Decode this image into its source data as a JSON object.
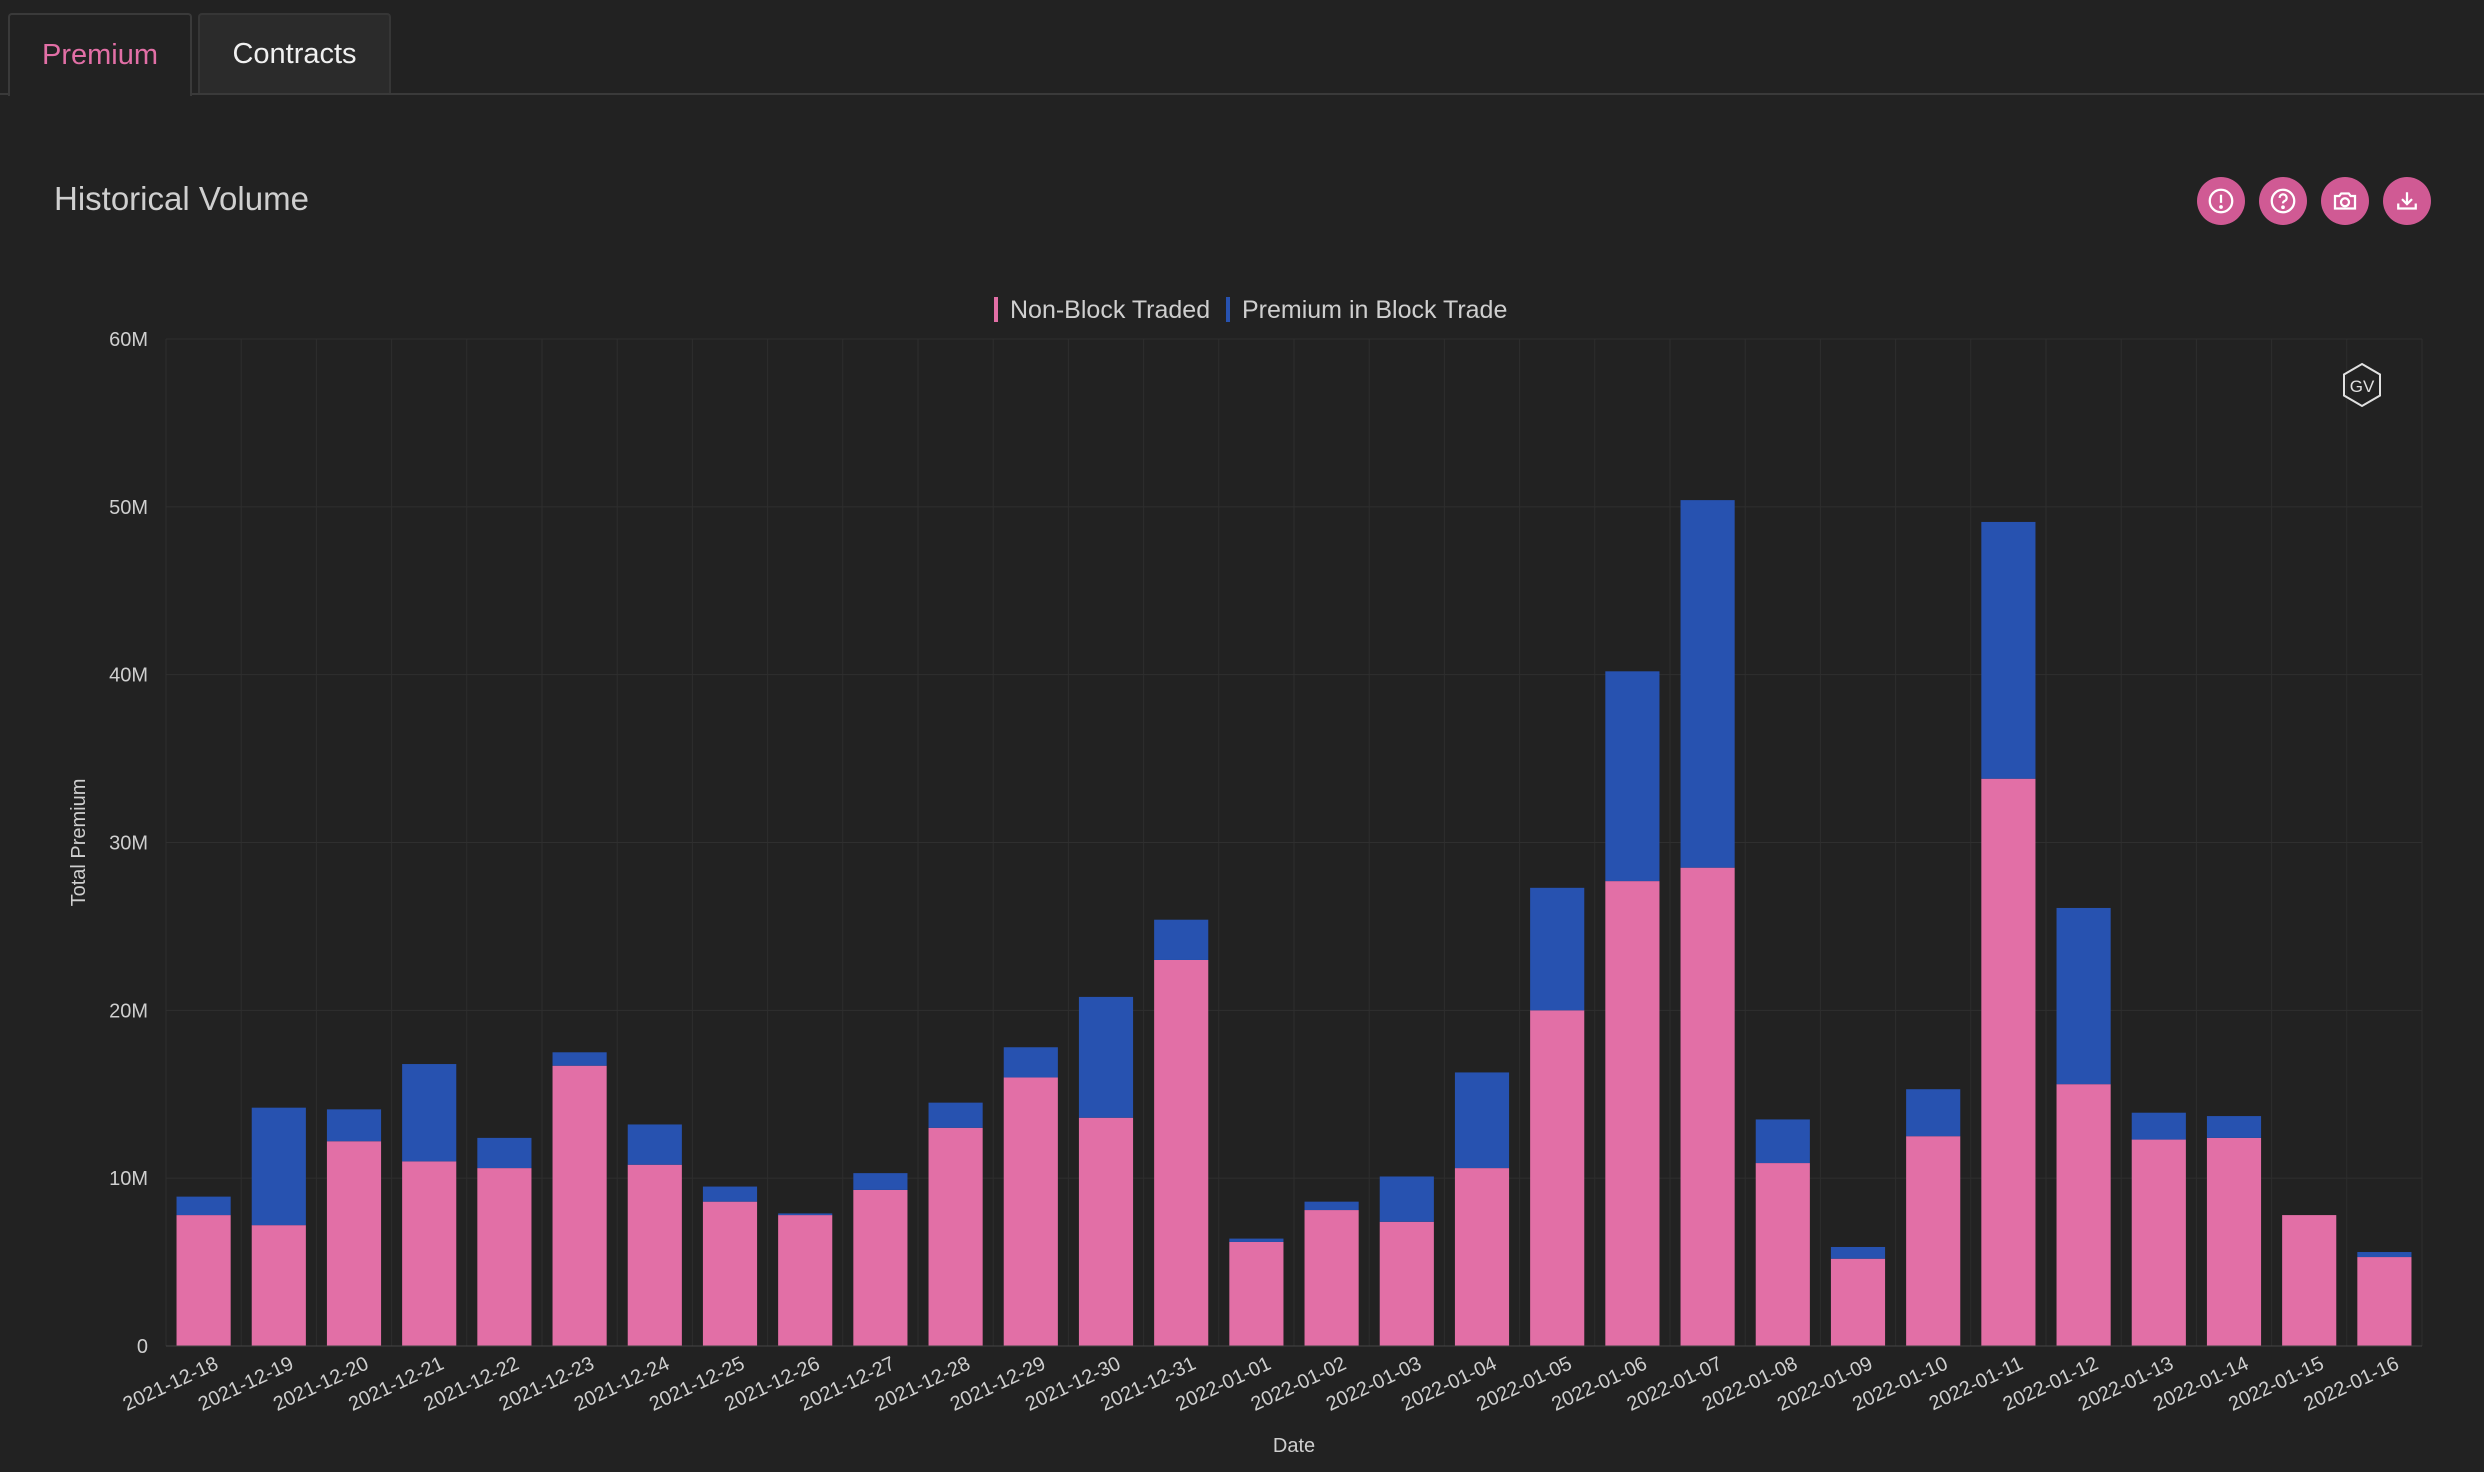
{
  "tabs": [
    {
      "label": "Premium",
      "active": true
    },
    {
      "label": "Contracts",
      "active": false
    }
  ],
  "card": {
    "title": "Historical Volume",
    "toolbar": [
      "info-icon",
      "help-icon",
      "camera-icon",
      "download-icon"
    ]
  },
  "watermark": "GV",
  "colors": {
    "background": "#222222",
    "non_block": "#e26fa6",
    "block": "#2752b0",
    "accent": "#d05a94"
  },
  "chart_data": {
    "type": "bar",
    "stacked": true,
    "xlabel": "Date",
    "ylabel": "Total Premium",
    "ylim": [
      0,
      60000000
    ],
    "yticks": [
      {
        "value": 0,
        "label": "0"
      },
      {
        "value": 10000000,
        "label": "10M"
      },
      {
        "value": 20000000,
        "label": "20M"
      },
      {
        "value": 30000000,
        "label": "30M"
      },
      {
        "value": 40000000,
        "label": "40M"
      },
      {
        "value": 50000000,
        "label": "50M"
      },
      {
        "value": 60000000,
        "label": "60M"
      }
    ],
    "legend_position": "top-center",
    "grid": true,
    "categories": [
      "2021-12-18",
      "2021-12-19",
      "2021-12-20",
      "2021-12-21",
      "2021-12-22",
      "2021-12-23",
      "2021-12-24",
      "2021-12-25",
      "2021-12-26",
      "2021-12-27",
      "2021-12-28",
      "2021-12-29",
      "2021-12-30",
      "2021-12-31",
      "2022-01-01",
      "2022-01-02",
      "2022-01-03",
      "2022-01-04",
      "2022-01-05",
      "2022-01-06",
      "2022-01-07",
      "2022-01-08",
      "2022-01-09",
      "2022-01-10",
      "2022-01-11",
      "2022-01-12",
      "2022-01-13",
      "2022-01-14",
      "2022-01-15",
      "2022-01-16"
    ],
    "series": [
      {
        "name": "Non-Block Traded",
        "color": "#e26fa6",
        "values": [
          7800000,
          7200000,
          12200000,
          11000000,
          10600000,
          16700000,
          10800000,
          8600000,
          7800000,
          9300000,
          13000000,
          16000000,
          13600000,
          23000000,
          6200000,
          8100000,
          7400000,
          10600000,
          20000000,
          27700000,
          28500000,
          10900000,
          5200000,
          12500000,
          33800000,
          15600000,
          12300000,
          12400000,
          7800000,
          5300000
        ]
      },
      {
        "name": "Premium in Block Trade",
        "color": "#2752b0",
        "values": [
          1100000,
          7000000,
          1900000,
          5800000,
          1800000,
          800000,
          2400000,
          900000,
          100000,
          1000000,
          1500000,
          1800000,
          7200000,
          2400000,
          200000,
          500000,
          2700000,
          5700000,
          7300000,
          12500000,
          21900000,
          2600000,
          700000,
          2800000,
          15300000,
          10500000,
          1600000,
          1300000,
          0,
          300000
        ]
      }
    ]
  }
}
